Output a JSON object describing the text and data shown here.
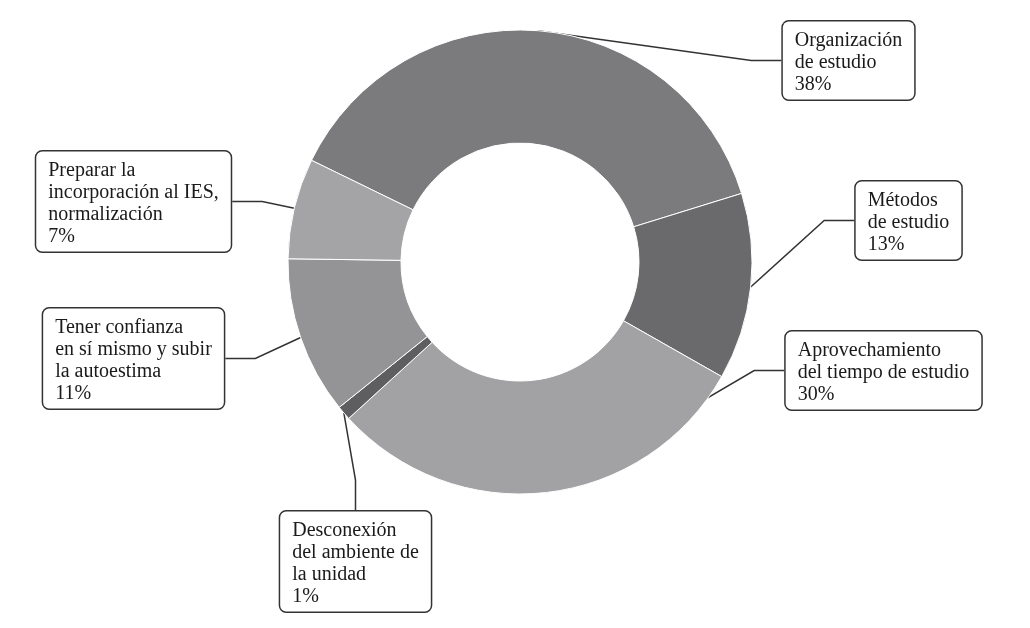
{
  "chart_data": {
    "type": "donut",
    "categories": [
      "Organización\nde estudio",
      "Métodos\nde estudio",
      "Aprovechamiento\ndel tiempo de estudio",
      "Desconexión\ndel ambiente de\nla unidad",
      "Tener confianza\nen sí mismo y subir\nla autoestima",
      "Preparar la\nincorporación al IES,\nnormalización"
    ],
    "values": [
      38,
      13,
      30,
      1,
      11,
      7
    ],
    "value_labels": [
      "38%",
      "13%",
      "30%",
      "1%",
      "11%",
      "7%"
    ],
    "colors": [
      "#7b7b7e",
      "#6a6a6c",
      "#a2a2a4",
      "#5e5e60",
      "#949496",
      "#a4a4a6"
    ],
    "legend": false
  }
}
